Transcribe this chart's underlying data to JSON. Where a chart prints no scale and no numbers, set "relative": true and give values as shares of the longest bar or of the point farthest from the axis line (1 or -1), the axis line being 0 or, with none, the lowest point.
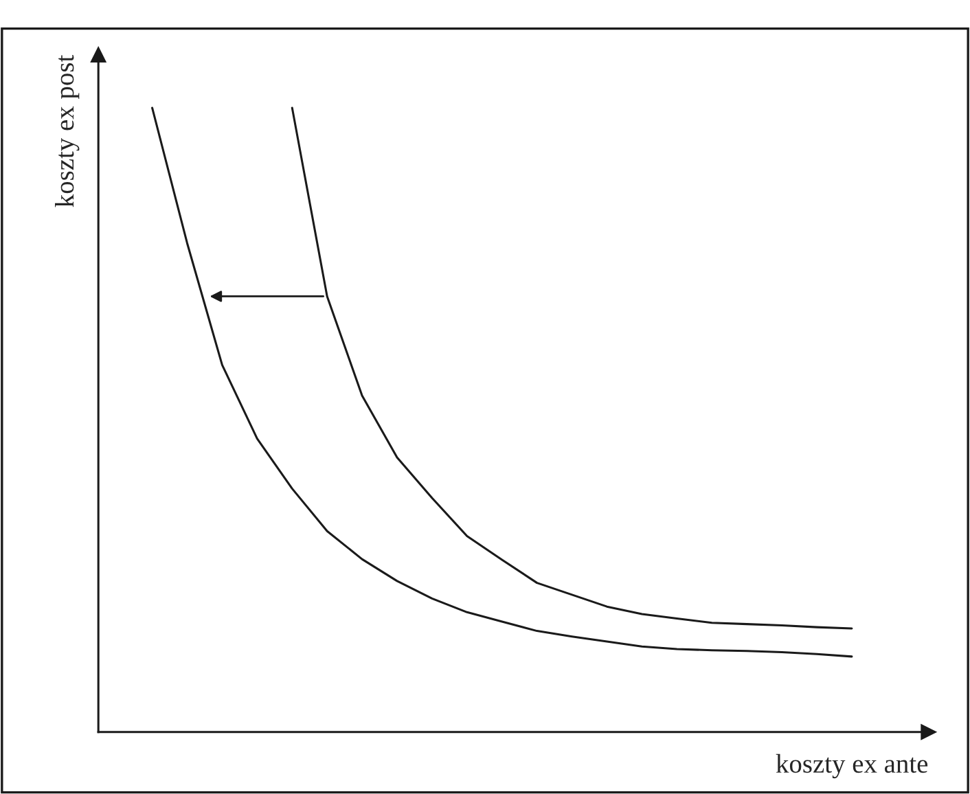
{
  "chart_data": {
    "type": "line",
    "relative": true,
    "xlabel": "koszty ex ante",
    "ylabel": "koszty ex post",
    "categories": [
      null,
      null,
      null,
      null,
      null,
      null,
      null,
      null,
      null,
      null,
      null,
      null,
      null,
      null,
      null,
      null,
      null,
      null,
      null,
      null,
      null
    ],
    "series": [
      {
        "color": "#1a1a1a",
        "values": [
          1.0,
          0.783,
          0.588,
          0.47,
          0.39,
          0.322,
          0.277,
          0.242,
          0.214,
          0.192,
          0.177,
          0.162,
          0.153,
          0.145,
          0.137,
          0.133,
          0.131,
          0.13,
          0.128,
          0.125,
          0.121
        ]
      },
      {
        "color": "#1a1a1a",
        "values": [
          null,
          null,
          null,
          null,
          1.0,
          0.698,
          0.539,
          0.44,
          0.375,
          0.314,
          0.276,
          0.239,
          0.22,
          0.201,
          0.189,
          0.182,
          0.175,
          0.173,
          0.171,
          0.168,
          0.166
        ]
      }
    ],
    "legend": false,
    "marker": "none",
    "line_style": "solid"
  }
}
